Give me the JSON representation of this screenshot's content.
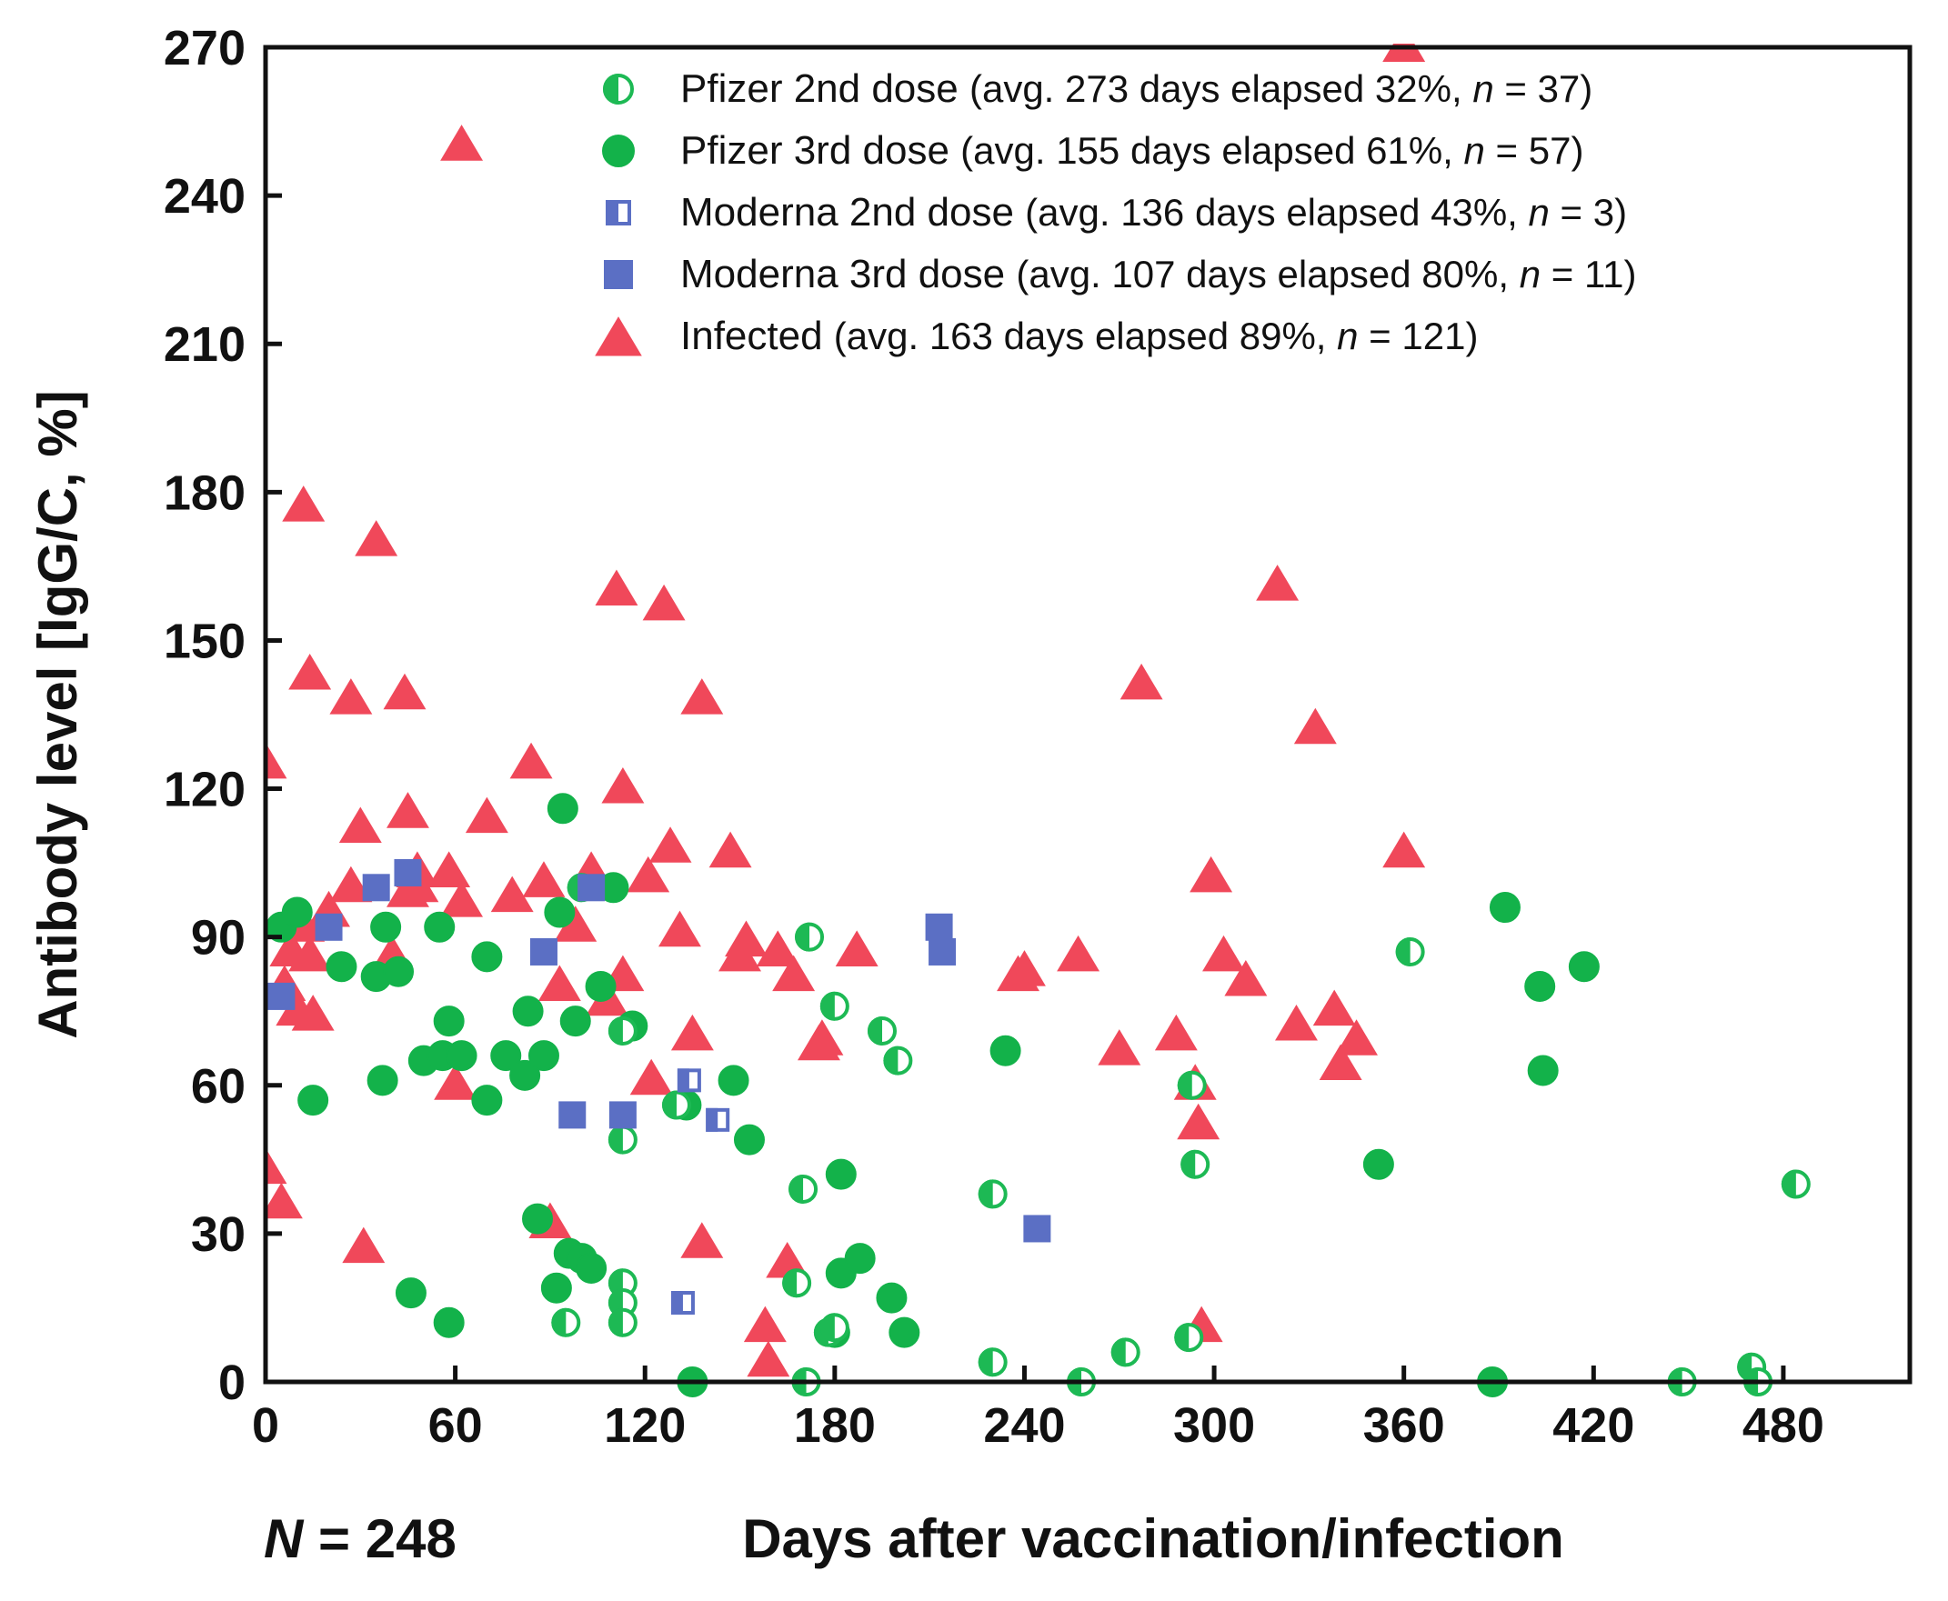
{
  "chart_data": {
    "type": "scatter",
    "xlabel": "Days after vaccination/infection",
    "ylabel": "Antibody level [IgG/C, %]",
    "xlim": [
      0,
      520
    ],
    "ylim": [
      0,
      270
    ],
    "xticks": [
      "0",
      "60",
      "120",
      "180",
      "240",
      "300",
      "360",
      "420",
      "480"
    ],
    "yticks": [
      "0",
      "30",
      "60",
      "90",
      "120",
      "150",
      "180",
      "210",
      "240",
      "270"
    ],
    "sample_label": "N = 248",
    "sample_label_parts": {
      "var": "N",
      "rest": " = 248"
    },
    "legend_position": "top-right",
    "series": [
      {
        "name": "Pfizer 2nd dose",
        "legend_main": "Pfizer 2nd dose ",
        "legend_detail": "(avg. 273 days elapsed 32%, ",
        "legend_n_var": "n",
        "legend_n_rest": " = 37)",
        "marker": "half-circle",
        "color": "#1db954",
        "points": [
          [
            113,
            20
          ],
          [
            113,
            16
          ],
          [
            113,
            12
          ],
          [
            113,
            49
          ],
          [
            113,
            71
          ],
          [
            168,
            20
          ],
          [
            170,
            39
          ],
          [
            172,
            90
          ],
          [
            178,
            10
          ],
          [
            180,
            76
          ],
          [
            180,
            11
          ],
          [
            171,
            0
          ],
          [
            195,
            71
          ],
          [
            200,
            65
          ],
          [
            230,
            38
          ],
          [
            230,
            4
          ],
          [
            258,
            0
          ],
          [
            272,
            6
          ],
          [
            292,
            9
          ],
          [
            293,
            60
          ],
          [
            294,
            44
          ],
          [
            362,
            87
          ],
          [
            448,
            0
          ],
          [
            470,
            3
          ],
          [
            472,
            0
          ],
          [
            484,
            40
          ],
          [
            95,
            12
          ],
          [
            100,
            100
          ],
          [
            130,
            56
          ]
        ]
      },
      {
        "name": "Pfizer 3rd dose",
        "legend_main": "Pfizer 3rd dose ",
        "legend_detail": "(avg. 155 days elapsed 61%, ",
        "legend_n_var": "n",
        "legend_n_rest": " = 57)",
        "marker": "circle",
        "color": "#13b24a",
        "points": [
          [
            5,
            92
          ],
          [
            10,
            95
          ],
          [
            15,
            57
          ],
          [
            24,
            84
          ],
          [
            35,
            82
          ],
          [
            37,
            61
          ],
          [
            38,
            92
          ],
          [
            42,
            83
          ],
          [
            46,
            18
          ],
          [
            50,
            65
          ],
          [
            55,
            92
          ],
          [
            56,
            66
          ],
          [
            58,
            73
          ],
          [
            58,
            12
          ],
          [
            62,
            66
          ],
          [
            70,
            86
          ],
          [
            70,
            57
          ],
          [
            76,
            66
          ],
          [
            82,
            62
          ],
          [
            83,
            75
          ],
          [
            86,
            33
          ],
          [
            88,
            66
          ],
          [
            92,
            19
          ],
          [
            93,
            95
          ],
          [
            94,
            116
          ],
          [
            96,
            26
          ],
          [
            98,
            73
          ],
          [
            100,
            25
          ],
          [
            103,
            23
          ],
          [
            106,
            80
          ],
          [
            110,
            100
          ],
          [
            116,
            72
          ],
          [
            133,
            56
          ],
          [
            135,
            0
          ],
          [
            148,
            61
          ],
          [
            153,
            49
          ],
          [
            182,
            42
          ],
          [
            182,
            22
          ],
          [
            188,
            25
          ],
          [
            198,
            17
          ],
          [
            202,
            10
          ],
          [
            234,
            67
          ],
          [
            352,
            44
          ],
          [
            388,
            0
          ],
          [
            392,
            96
          ],
          [
            403,
            80
          ],
          [
            404,
            63
          ],
          [
            417,
            84
          ],
          [
            180,
            10
          ]
        ]
      },
      {
        "name": "Moderna 2nd dose",
        "legend_main": "Moderna 2nd dose ",
        "legend_detail": "(avg. 136 days elapsed 43%, ",
        "legend_n_var": "n",
        "legend_n_rest": " = 3)",
        "marker": "half-square",
        "color": "#5b6fc4",
        "points": [
          [
            132,
            16
          ],
          [
            134,
            61
          ],
          [
            143,
            53
          ]
        ]
      },
      {
        "name": "Moderna 3rd dose",
        "legend_main": "Moderna 3rd dose ",
        "legend_detail": "(avg. 107 days elapsed 80%, ",
        "legend_n_var": "n",
        "legend_n_rest": " = 11)",
        "marker": "square",
        "color": "#5b6fc4",
        "points": [
          [
            5,
            78
          ],
          [
            20,
            92
          ],
          [
            35,
            100
          ],
          [
            45,
            103
          ],
          [
            88,
            87
          ],
          [
            97,
            54
          ],
          [
            103,
            100
          ],
          [
            113,
            54
          ],
          [
            213,
            92
          ],
          [
            214,
            87
          ],
          [
            244,
            31
          ]
        ]
      },
      {
        "name": "Infected",
        "legend_main": "Infected ",
        "legend_detail": "(avg. 163 days elapsed 89%, ",
        "legend_n_var": "n",
        "legend_n_rest": " = 121)",
        "marker": "triangle",
        "color": "#f0485a",
        "points": [
          [
            0,
            125
          ],
          [
            0,
            43
          ],
          [
            5,
            36
          ],
          [
            6,
            80
          ],
          [
            8,
            87
          ],
          [
            10,
            75
          ],
          [
            12,
            92
          ],
          [
            12,
            177
          ],
          [
            14,
            143
          ],
          [
            14,
            86
          ],
          [
            15,
            74
          ],
          [
            20,
            95
          ],
          [
            27,
            100
          ],
          [
            27,
            138
          ],
          [
            30,
            112
          ],
          [
            31,
            27
          ],
          [
            35,
            170
          ],
          [
            40,
            86
          ],
          [
            44,
            139
          ],
          [
            45,
            115
          ],
          [
            45,
            99
          ],
          [
            48,
            103
          ],
          [
            48,
            100
          ],
          [
            58,
            103
          ],
          [
            60,
            60
          ],
          [
            62,
            97
          ],
          [
            62,
            250
          ],
          [
            70,
            114
          ],
          [
            78,
            98
          ],
          [
            84,
            125
          ],
          [
            88,
            101
          ],
          [
            90,
            32
          ],
          [
            93,
            80
          ],
          [
            98,
            92
          ],
          [
            103,
            103
          ],
          [
            108,
            77
          ],
          [
            111,
            160
          ],
          [
            113,
            120
          ],
          [
            113,
            82
          ],
          [
            121,
            102
          ],
          [
            122,
            61
          ],
          [
            126,
            157
          ],
          [
            128,
            108
          ],
          [
            131,
            91
          ],
          [
            135,
            70
          ],
          [
            138,
            28
          ],
          [
            138,
            138
          ],
          [
            147,
            107
          ],
          [
            150,
            86
          ],
          [
            152,
            89
          ],
          [
            158,
            11
          ],
          [
            159,
            4
          ],
          [
            162,
            87
          ],
          [
            165,
            24
          ],
          [
            167,
            82
          ],
          [
            175,
            68
          ],
          [
            176,
            69
          ],
          [
            187,
            87
          ],
          [
            238,
            82
          ],
          [
            240,
            83
          ],
          [
            257,
            86
          ],
          [
            270,
            67
          ],
          [
            277,
            141
          ],
          [
            288,
            70
          ],
          [
            294,
            60
          ],
          [
            295,
            52
          ],
          [
            296,
            11
          ],
          [
            299,
            102
          ],
          [
            303,
            86
          ],
          [
            310,
            81
          ],
          [
            320,
            161
          ],
          [
            326,
            72
          ],
          [
            332,
            132
          ],
          [
            338,
            75
          ],
          [
            340,
            64
          ],
          [
            345,
            69
          ],
          [
            360,
            107
          ],
          [
            360,
            270
          ]
        ]
      }
    ]
  },
  "colors": {
    "pfizer": "#13b24a",
    "moderna": "#5b6fc4",
    "infected": "#f0485a",
    "axis": "#111111"
  }
}
